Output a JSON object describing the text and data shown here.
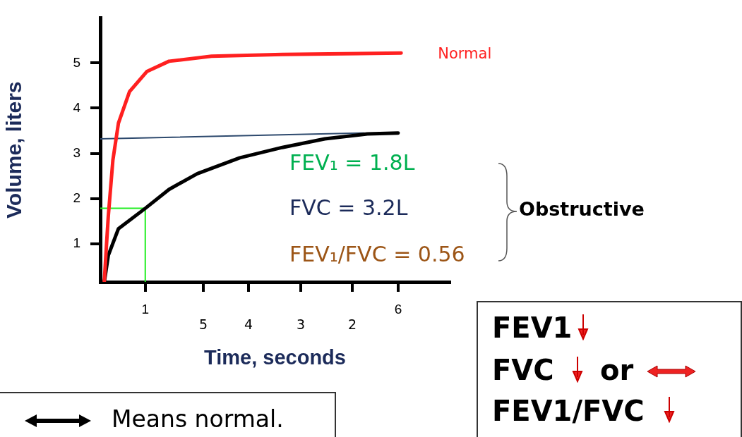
{
  "chart_data": {
    "type": "line",
    "xlabel": "Time, seconds",
    "ylabel": "Volume, liters",
    "xlim": [
      0.11,
      7.02
    ],
    "ylim": [
      0.15,
      6.0
    ],
    "xticks": [
      1,
      {
        "value": 2.15,
        "label": null
      },
      {
        "value": 3.04,
        "label": null
      },
      {
        "value": 4.07,
        "label": null
      },
      {
        "value": 5.09,
        "label": null
      },
      6
    ],
    "yticks": [
      1,
      2,
      3,
      4,
      5
    ],
    "marker": "none",
    "line_style": "solid",
    "grid": false,
    "legend": false,
    "series": [
      {
        "name": "Normal",
        "color": "#ff2020",
        "x": [
          0.19,
          0.23,
          0.27,
          0.36,
          0.47,
          0.69,
          1.03,
          1.47,
          2.31,
          3.71,
          6.06
        ],
        "values": [
          0.15,
          0.91,
          1.62,
          2.85,
          3.67,
          4.37,
          4.81,
          5.04,
          5.15,
          5.19,
          5.22
        ]
      },
      {
        "color": "#000000",
        "x": [
          0.19,
          0.27,
          0.47,
          1,
          1.47,
          2.03,
          2.87,
          3.71,
          4.55,
          5.39,
          6
        ],
        "values": [
          0.15,
          0.74,
          1.33,
          1.78,
          2.2,
          2.55,
          2.9,
          3.13,
          3.32,
          3.43,
          3.45
        ]
      },
      {
        "color": "#2e4a6e",
        "x": [
          0.11,
          5.33
        ],
        "values": [
          3.32,
          3.45
        ]
      },
      {
        "color": "#22ee22",
        "x": [
          0.11,
          1,
          1
        ],
        "values": [
          1.78,
          1.78,
          0.15
        ]
      }
    ],
    "annotations": [
      "FEV₁ = 1.8L",
      "FVC = 3.2L",
      "FEV₁/FVC = 0.56",
      "Obstructive",
      "FEV1",
      "FVC",
      "or",
      "FEV1/FVC",
      "Means normal.",
      "5",
      "4",
      "3",
      "2"
    ]
  }
}
